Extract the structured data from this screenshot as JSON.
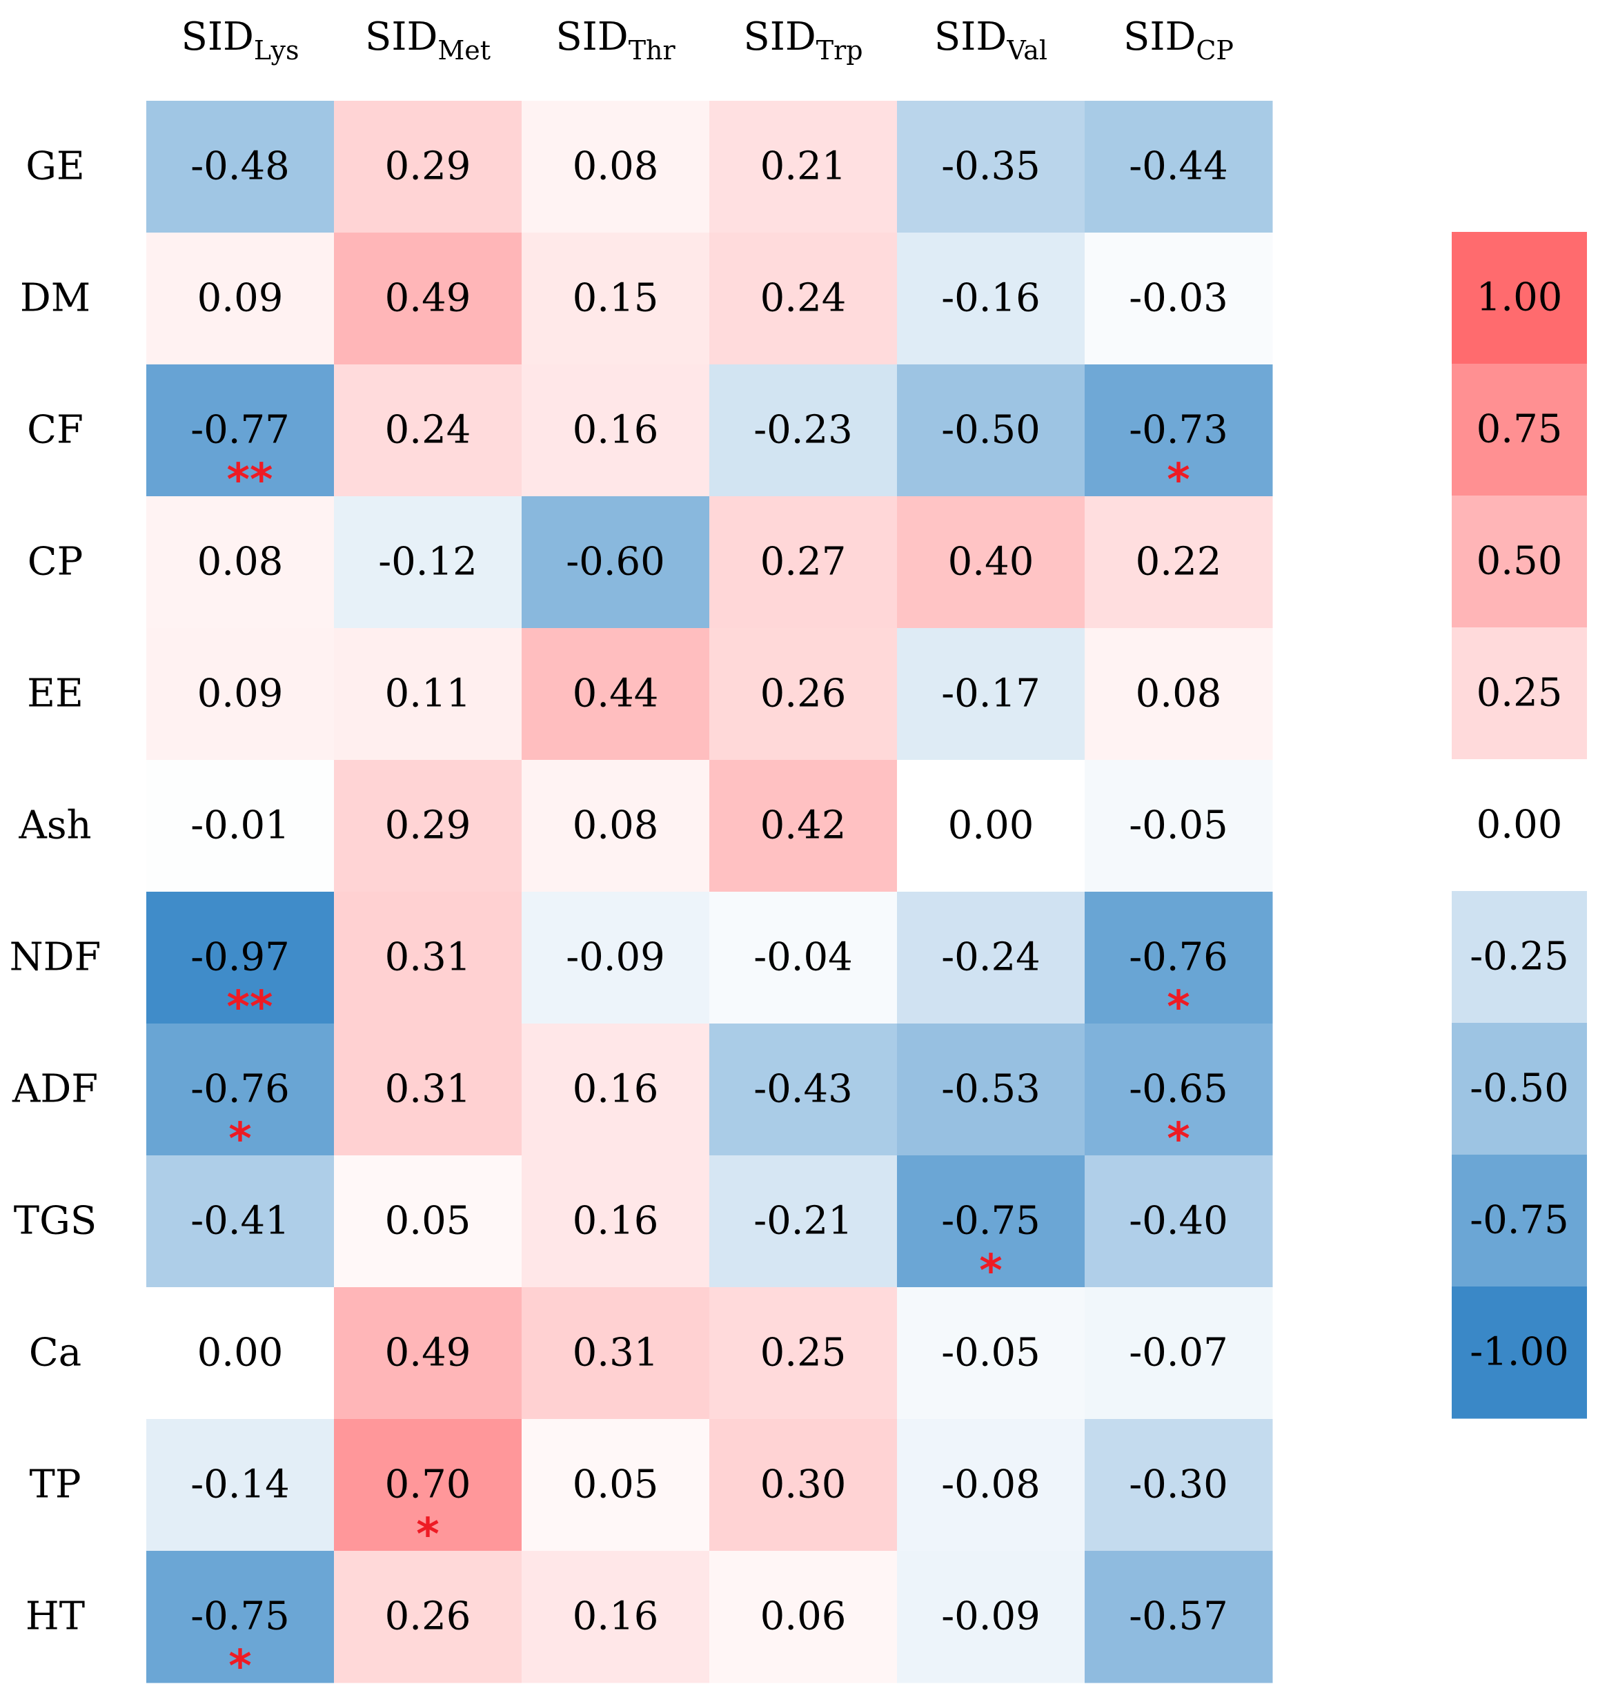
{
  "chart_data": {
    "type": "heatmap",
    "columns": [
      {
        "prefix": "SID",
        "sub": "Lys"
      },
      {
        "prefix": "SID",
        "sub": "Met"
      },
      {
        "prefix": "SID",
        "sub": "Thr"
      },
      {
        "prefix": "SID",
        "sub": "Trp"
      },
      {
        "prefix": "SID",
        "sub": "Val"
      },
      {
        "prefix": "SID",
        "sub": "CP"
      }
    ],
    "rows": [
      "GE",
      "DM",
      "CF",
      "CP",
      "EE",
      "Ash",
      "NDF",
      "ADF",
      "TGS",
      "Ca",
      "TP",
      "HT"
    ],
    "values": [
      [
        -0.48,
        0.29,
        0.08,
        0.21,
        -0.35,
        -0.44
      ],
      [
        0.09,
        0.49,
        0.15,
        0.24,
        -0.16,
        -0.03
      ],
      [
        -0.77,
        0.24,
        0.16,
        -0.23,
        -0.5,
        -0.73
      ],
      [
        0.08,
        -0.12,
        -0.6,
        0.27,
        0.4,
        0.22
      ],
      [
        0.09,
        0.11,
        0.44,
        0.26,
        -0.17,
        0.08
      ],
      [
        -0.01,
        0.29,
        0.08,
        0.42,
        0.0,
        -0.05
      ],
      [
        -0.97,
        0.31,
        -0.09,
        -0.04,
        -0.24,
        -0.76
      ],
      [
        -0.76,
        0.31,
        0.16,
        -0.43,
        -0.53,
        -0.65
      ],
      [
        -0.41,
        0.05,
        0.16,
        -0.21,
        -0.75,
        -0.4
      ],
      [
        0.0,
        0.49,
        0.31,
        0.25,
        -0.05,
        -0.07
      ],
      [
        -0.14,
        0.7,
        0.05,
        0.3,
        -0.08,
        -0.3
      ],
      [
        -0.75,
        0.26,
        0.16,
        0.06,
        -0.09,
        -0.57
      ]
    ],
    "labels": [
      [
        "-0.48",
        "0.29",
        "0.08",
        "0.21",
        "-0.35",
        "-0.44"
      ],
      [
        "0.09",
        "0.49",
        "0.15",
        "0.24",
        "-0.16",
        "-0.03"
      ],
      [
        "-0.77",
        "0.24",
        "0.16",
        "-0.23",
        "-0.50",
        "-0.73"
      ],
      [
        "0.08",
        "-0.12",
        "-0.60",
        "0.27",
        "0.40",
        "0.22"
      ],
      [
        "0.09",
        "0.11",
        "0.44",
        "0.26",
        "-0.17",
        "0.08"
      ],
      [
        "-0.01",
        "0.29",
        "0.08",
        "0.42",
        "0.00",
        "-0.05"
      ],
      [
        "-0.97",
        "0.31",
        "-0.09",
        "-0.04",
        "-0.24",
        "-0.76"
      ],
      [
        "-0.76",
        "0.31",
        "0.16",
        "-0.43",
        "-0.53",
        "-0.65"
      ],
      [
        "-0.41",
        "0.05",
        "0.16",
        "-0.21",
        "-0.75",
        "-0.40"
      ],
      [
        "0.00",
        "0.49",
        "0.31",
        "0.25",
        "-0.05",
        "-0.07"
      ],
      [
        "-0.14",
        "0.70",
        "0.05",
        "0.30",
        "-0.08",
        "-0.30"
      ],
      [
        "-0.75",
        "0.26",
        "0.16",
        "0.06",
        "-0.09",
        "-0.57"
      ]
    ],
    "significance": [
      [
        "",
        "",
        "",
        "",
        "",
        ""
      ],
      [
        "",
        "",
        "",
        "",
        "",
        ""
      ],
      [
        "**",
        "",
        "",
        "",
        "",
        "*"
      ],
      [
        "",
        "",
        "",
        "",
        "",
        ""
      ],
      [
        "",
        "",
        "",
        "",
        "",
        ""
      ],
      [
        "",
        "",
        "",
        "",
        "",
        ""
      ],
      [
        "**",
        "",
        "",
        "",
        "",
        "*"
      ],
      [
        "*",
        "",
        "",
        "",
        "",
        "*"
      ],
      [
        "",
        "",
        "",
        "",
        "*",
        ""
      ],
      [
        "",
        "",
        "",
        "",
        "",
        ""
      ],
      [
        "",
        "*",
        "",
        "",
        "",
        ""
      ],
      [
        "*",
        "",
        "",
        "",
        "",
        ""
      ]
    ],
    "color_scale": {
      "range": [
        -1.0,
        1.0
      ],
      "positive_color": "#ff6b6e",
      "negative_color": "#3a88c7",
      "zero_color": "#ffffff"
    },
    "legend": {
      "position": "right",
      "ticks": [
        {
          "value": 1.0,
          "label": "1.00"
        },
        {
          "value": 0.75,
          "label": "0.75"
        },
        {
          "value": 0.5,
          "label": "0.50"
        },
        {
          "value": 0.25,
          "label": "0.25"
        },
        {
          "value": 0.0,
          "label": "0.00"
        },
        {
          "value": -0.25,
          "label": "-0.25"
        },
        {
          "value": -0.5,
          "label": "-0.50"
        },
        {
          "value": -0.75,
          "label": "-0.75"
        },
        {
          "value": -1.0,
          "label": "-1.00"
        }
      ]
    }
  }
}
